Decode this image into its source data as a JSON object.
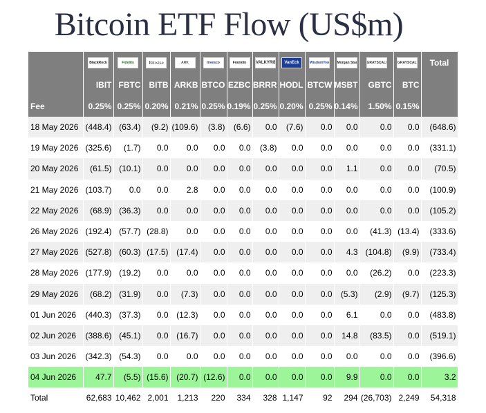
{
  "title": "Bitcoin ETF Flow (US$m)",
  "header": {
    "fee_label": "Fee",
    "total_label": "Total",
    "logos": [
      "BlackRock",
      "Fidelity",
      "Bitwise",
      "ARK",
      "Invesco",
      "Franklin",
      "VALKYRIE",
      "VanEck",
      "WisdomTree",
      "Morgan Stanley",
      "GRAYSCALE",
      "GRAYSCALE"
    ],
    "tickers": [
      "IBIT",
      "FBTC",
      "BITB",
      "ARKB",
      "BTCO",
      "EZBC",
      "BRRR",
      "HODL",
      "BTCW",
      "MSBT",
      "GBTC",
      "BTC"
    ],
    "fees": [
      "0.25%",
      "0.25%",
      "0.20%",
      "0.21%",
      "0.25%",
      "0.19%",
      "0.25%",
      "0.20%",
      "0.25%",
      "0.14%",
      "1.50%",
      "0.15%"
    ]
  },
  "rows": [
    {
      "date": "18 May 2026",
      "values": [
        "(448.4)",
        "(63.4)",
        "(9.2)",
        "(109.6)",
        "(3.8)",
        "(6.6)",
        "0.0",
        "(7.6)",
        "0.0",
        "0.0",
        "0.0",
        "0.0"
      ],
      "total": "(648.6)"
    },
    {
      "date": "19 May 2026",
      "values": [
        "(325.6)",
        "(1.7)",
        "0.0",
        "0.0",
        "0.0",
        "0.0",
        "(3.8)",
        "0.0",
        "0.0",
        "0.0",
        "0.0",
        "0.0"
      ],
      "total": "(331.1)"
    },
    {
      "date": "20 May 2026",
      "values": [
        "(61.5)",
        "(10.1)",
        "0.0",
        "0.0",
        "0.0",
        "0.0",
        "0.0",
        "0.0",
        "0.0",
        "1.1",
        "0.0",
        "0.0"
      ],
      "total": "(70.5)"
    },
    {
      "date": "21 May 2026",
      "values": [
        "(103.7)",
        "0.0",
        "0.0",
        "2.8",
        "0.0",
        "0.0",
        "0.0",
        "0.0",
        "0.0",
        "0.0",
        "0.0",
        "0.0"
      ],
      "total": "(100.9)"
    },
    {
      "date": "22 May 2026",
      "values": [
        "(68.9)",
        "(36.3)",
        "0.0",
        "0.0",
        "0.0",
        "0.0",
        "0.0",
        "0.0",
        "0.0",
        "0.0",
        "0.0",
        "0.0"
      ],
      "total": "(105.2)"
    },
    {
      "date": "26 May 2026",
      "values": [
        "(192.4)",
        "(57.7)",
        "(28.8)",
        "0.0",
        "0.0",
        "0.0",
        "0.0",
        "0.0",
        "0.0",
        "0.0",
        "(41.3)",
        "(13.4)"
      ],
      "total": "(333.6)"
    },
    {
      "date": "27 May 2026",
      "values": [
        "(527.8)",
        "(60.3)",
        "(17.5)",
        "(17.4)",
        "0.0",
        "0.0",
        "0.0",
        "0.0",
        "0.0",
        "4.3",
        "(104.8)",
        "(9.9)"
      ],
      "total": "(733.4)"
    },
    {
      "date": "28 May 2026",
      "values": [
        "(177.9)",
        "(19.2)",
        "0.0",
        "0.0",
        "0.0",
        "0.0",
        "0.0",
        "0.0",
        "0.0",
        "0.0",
        "(26.2)",
        "0.0"
      ],
      "total": "(223.3)"
    },
    {
      "date": "29 May 2026",
      "values": [
        "(68.2)",
        "(31.9)",
        "0.0",
        "(7.3)",
        "0.0",
        "0.0",
        "0.0",
        "0.0",
        "0.0",
        "(5.3)",
        "(2.9)",
        "(9.7)"
      ],
      "total": "(125.3)"
    },
    {
      "date": "01 Jun 2026",
      "values": [
        "(440.3)",
        "(37.3)",
        "0.0",
        "(12.3)",
        "0.0",
        "0.0",
        "0.0",
        "0.0",
        "0.0",
        "6.1",
        "0.0",
        "0.0"
      ],
      "total": "(483.8)"
    },
    {
      "date": "02 Jun 2026",
      "values": [
        "(388.6)",
        "(45.1)",
        "0.0",
        "(16.7)",
        "0.0",
        "0.0",
        "0.0",
        "0.0",
        "0.0",
        "14.8",
        "(83.5)",
        "0.0"
      ],
      "total": "(519.1)"
    },
    {
      "date": "03 Jun 2026",
      "values": [
        "(342.3)",
        "(54.3)",
        "0.0",
        "0.0",
        "0.0",
        "0.0",
        "0.0",
        "0.0",
        "0.0",
        "0.0",
        "0.0",
        "0.0"
      ],
      "total": "(396.6)"
    },
    {
      "date": "04 Jun 2026",
      "values": [
        "47.7",
        "(5.5)",
        "(15.6)",
        "(20.7)",
        "(12.6)",
        "0.0",
        "0.0",
        "0.0",
        "0.0",
        "9.9",
        "0.0",
        "0.0"
      ],
      "total": "3.2",
      "highlight": true
    }
  ],
  "totals": {
    "label": "Total",
    "values": [
      "62,683",
      "10,462",
      "2,001",
      "1,213",
      "220",
      "334",
      "328",
      "1,147",
      "92",
      "294",
      "(26,703)",
      "2,249"
    ],
    "total": "54,318"
  },
  "colors": {
    "header_bg": "#7f7f7f",
    "negative": "#e00000",
    "zero": "#c6c6c6",
    "highlight": "#9cf598",
    "stripe": "#efefef"
  }
}
